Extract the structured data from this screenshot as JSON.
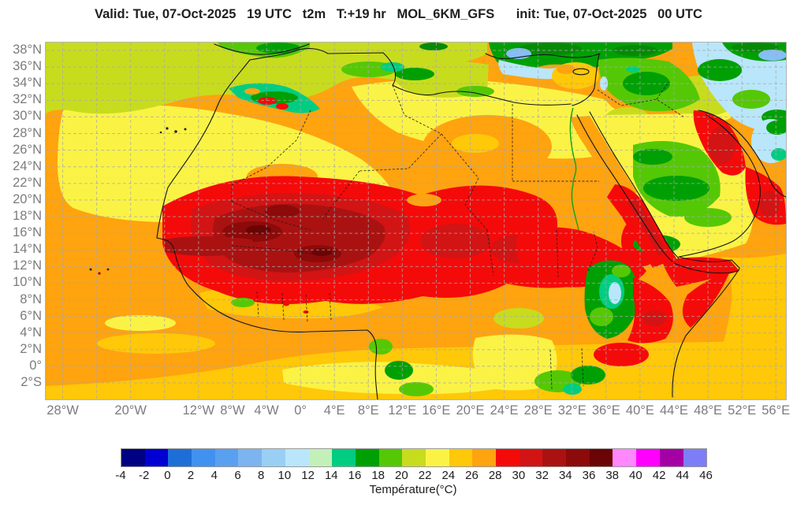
{
  "header": {
    "title": "Valid: Tue, 07-Oct-2025   19 UTC   t2m   T:+19 hr   MOL_6KM_GFS      init: Tue, 07-Oct-2025   00 UTC"
  },
  "map": {
    "x_ticks": [
      {
        "label": "28°W",
        "lon": -28
      },
      {
        "label": "20°W",
        "lon": -20
      },
      {
        "label": "12°W",
        "lon": -12
      },
      {
        "label": "8°W",
        "lon": -8
      },
      {
        "label": "4°W",
        "lon": -4
      },
      {
        "label": "0°",
        "lon": 0
      },
      {
        "label": "4°E",
        "lon": 4
      },
      {
        "label": "8°E",
        "lon": 8
      },
      {
        "label": "12°E",
        "lon": 12
      },
      {
        "label": "16°E",
        "lon": 16
      },
      {
        "label": "20°E",
        "lon": 20
      },
      {
        "label": "24°E",
        "lon": 24
      },
      {
        "label": "28°E",
        "lon": 28
      },
      {
        "label": "32°E",
        "lon": 32
      },
      {
        "label": "36°E",
        "lon": 36
      },
      {
        "label": "40°E",
        "lon": 40
      },
      {
        "label": "44°E",
        "lon": 44
      },
      {
        "label": "48°E",
        "lon": 48
      },
      {
        "label": "52°E",
        "lon": 52
      },
      {
        "label": "56°E",
        "lon": 56
      }
    ],
    "y_ticks": [
      {
        "label": "38°N",
        "lat": 38
      },
      {
        "label": "36°N",
        "lat": 36
      },
      {
        "label": "34°N",
        "lat": 34
      },
      {
        "label": "32°N",
        "lat": 32
      },
      {
        "label": "30°N",
        "lat": 30
      },
      {
        "label": "28°N",
        "lat": 28
      },
      {
        "label": "26°N",
        "lat": 26
      },
      {
        "label": "24°N",
        "lat": 24
      },
      {
        "label": "22°N",
        "lat": 22
      },
      {
        "label": "20°N",
        "lat": 20
      },
      {
        "label": "18°N",
        "lat": 18
      },
      {
        "label": "16°N",
        "lat": 16
      },
      {
        "label": "14°N",
        "lat": 14
      },
      {
        "label": "12°N",
        "lat": 12
      },
      {
        "label": "10°N",
        "lat": 10
      },
      {
        "label": "8°N",
        "lat": 8
      },
      {
        "label": "6°N",
        "lat": 6
      },
      {
        "label": "4°N",
        "lat": 4
      },
      {
        "label": "2°N",
        "lat": 2
      },
      {
        "label": "0°",
        "lat": 0
      },
      {
        "label": "2°S",
        "lat": -2
      }
    ],
    "grid": {
      "lon_start": -28,
      "lon_end": 56,
      "lon_step": 4,
      "lat_start": -2,
      "lat_end": 38,
      "lat_step": 2
    }
  },
  "colorbar": {
    "title": "Température(°C)",
    "ticks": [
      -4,
      -2,
      0,
      2,
      4,
      6,
      8,
      10,
      12,
      14,
      16,
      18,
      20,
      22,
      24,
      26,
      28,
      30,
      32,
      34,
      36,
      38,
      40,
      42,
      44,
      46
    ],
    "colors": [
      "#000082",
      "#0000D2",
      "#1E6ED7",
      "#4191F0",
      "#5AA0F0",
      "#7DB4F0",
      "#99CFF5",
      "#B9E6FA",
      "#C3F0B9",
      "#00CD82",
      "#00A005",
      "#55C805",
      "#C8DC1E",
      "#FAF346",
      "#FFC808",
      "#FFA30F",
      "#F50A0A",
      "#D21414",
      "#AA1212",
      "#8C0A0A",
      "#6B0404",
      "#FF87FF",
      "#FF00FF",
      "#A500A5",
      "#7D7DF8"
    ]
  },
  "chart_data": {
    "type": "heatmap",
    "variable": "t2m",
    "units": "°C",
    "model": "MOL_6KM_GFS",
    "valid": "Tue, 07-Oct-2025 19 UTC",
    "init": "Tue, 07-Oct-2025 00 UTC",
    "forecast_hour": "+19 hr",
    "scale_min": -4,
    "scale_max": 46
  }
}
